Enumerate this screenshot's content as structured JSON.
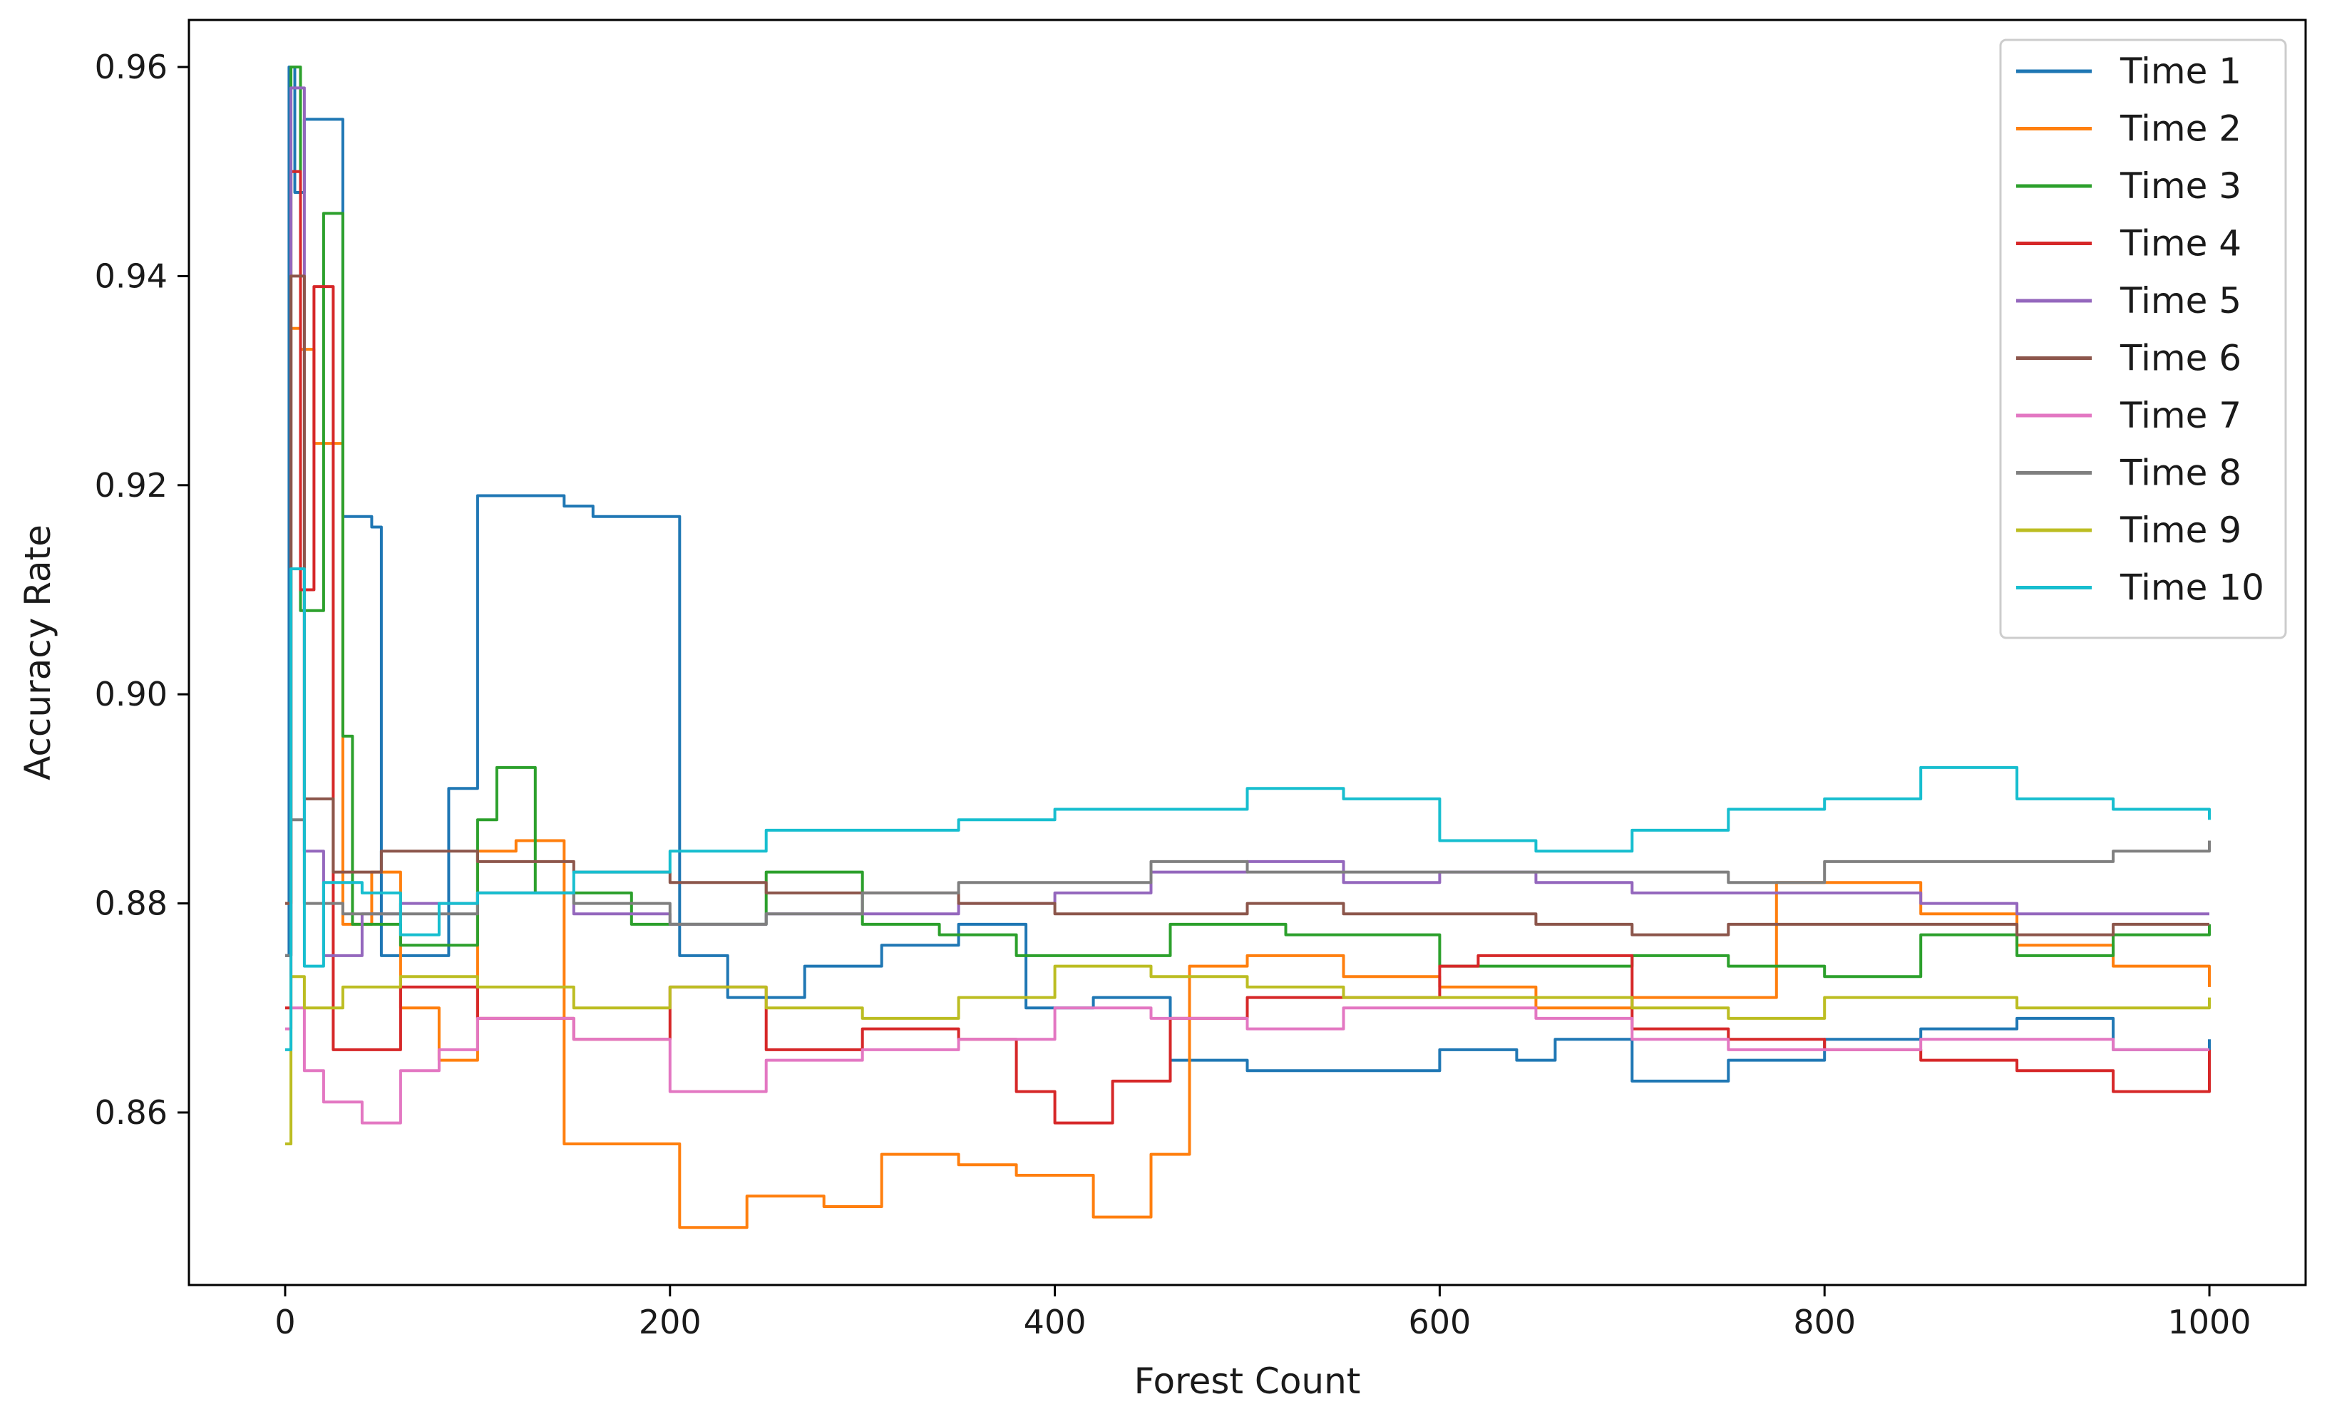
{
  "chart_data": {
    "type": "line",
    "title": "",
    "xlabel": "Forest Count",
    "ylabel": "Accuracy Rate",
    "xlim": [
      -50,
      1050
    ],
    "ylim": [
      0.8435,
      0.9645
    ],
    "x_ticks": [
      0,
      200,
      400,
      600,
      800,
      1000
    ],
    "x_tick_labels": [
      "0",
      "200",
      "400",
      "600",
      "800",
      "1000"
    ],
    "y_ticks": [
      0.86,
      0.88,
      0.9,
      0.92,
      0.94,
      0.96
    ],
    "y_tick_labels": [
      "0.86",
      "0.88",
      "0.90",
      "0.92",
      "0.94",
      "0.96"
    ],
    "grid": false,
    "legend_position": "upper-right",
    "series": [
      {
        "name": "Time 1",
        "color": "#1f77b4",
        "x": [
          0,
          2,
          5,
          10,
          25,
          30,
          45,
          50,
          85,
          100,
          120,
          145,
          160,
          195,
          205,
          230,
          270,
          310,
          350,
          385,
          420,
          460,
          500,
          550,
          600,
          640,
          660,
          700,
          750,
          800,
          850,
          900,
          950,
          1000
        ],
        "y": [
          0.875,
          0.96,
          0.948,
          0.955,
          0.955,
          0.917,
          0.916,
          0.875,
          0.891,
          0.919,
          0.919,
          0.918,
          0.917,
          0.917,
          0.875,
          0.871,
          0.874,
          0.876,
          0.878,
          0.87,
          0.871,
          0.865,
          0.864,
          0.864,
          0.866,
          0.865,
          0.867,
          0.863,
          0.865,
          0.867,
          0.868,
          0.869,
          0.866,
          0.867
        ]
      },
      {
        "name": "Time 2",
        "color": "#ff7f0e",
        "x": [
          0,
          3,
          8,
          15,
          22,
          30,
          45,
          60,
          80,
          100,
          120,
          145,
          180,
          205,
          240,
          280,
          310,
          350,
          380,
          420,
          450,
          470,
          500,
          550,
          600,
          650,
          700,
          750,
          775,
          800,
          850,
          900,
          950,
          1000
        ],
        "y": [
          0.88,
          0.935,
          0.933,
          0.924,
          0.924,
          0.878,
          0.883,
          0.87,
          0.865,
          0.885,
          0.886,
          0.857,
          0.857,
          0.849,
          0.852,
          0.851,
          0.856,
          0.855,
          0.854,
          0.85,
          0.856,
          0.874,
          0.875,
          0.873,
          0.872,
          0.87,
          0.871,
          0.871,
          0.882,
          0.882,
          0.879,
          0.876,
          0.874,
          0.872
        ]
      },
      {
        "name": "Time 3",
        "color": "#2ca02c",
        "x": [
          0,
          3,
          8,
          14,
          20,
          25,
          30,
          35,
          60,
          100,
          110,
          130,
          180,
          250,
          300,
          340,
          380,
          460,
          520,
          600,
          650,
          700,
          750,
          800,
          850,
          900,
          950,
          1000
        ],
        "y": [
          0.875,
          0.96,
          0.908,
          0.908,
          0.946,
          0.946,
          0.896,
          0.878,
          0.876,
          0.888,
          0.893,
          0.881,
          0.878,
          0.883,
          0.878,
          0.877,
          0.875,
          0.878,
          0.877,
          0.874,
          0.874,
          0.875,
          0.874,
          0.873,
          0.877,
          0.875,
          0.877,
          0.878
        ]
      },
      {
        "name": "Time 4",
        "color": "#d62728",
        "x": [
          0,
          3,
          8,
          15,
          25,
          40,
          60,
          100,
          150,
          200,
          250,
          300,
          350,
          380,
          400,
          430,
          460,
          500,
          550,
          600,
          620,
          650,
          700,
          750,
          800,
          850,
          900,
          950,
          1000
        ],
        "y": [
          0.87,
          0.95,
          0.91,
          0.939,
          0.866,
          0.866,
          0.872,
          0.869,
          0.867,
          0.872,
          0.866,
          0.868,
          0.867,
          0.862,
          0.859,
          0.863,
          0.869,
          0.871,
          0.871,
          0.874,
          0.875,
          0.875,
          0.868,
          0.867,
          0.866,
          0.865,
          0.864,
          0.862,
          0.866
        ]
      },
      {
        "name": "Time 5",
        "color": "#9467bd",
        "x": [
          0,
          3,
          10,
          20,
          40,
          60,
          100,
          150,
          200,
          250,
          300,
          350,
          400,
          450,
          500,
          550,
          600,
          650,
          700,
          750,
          800,
          850,
          900,
          950,
          1000
        ],
        "y": [
          0.875,
          0.958,
          0.885,
          0.875,
          0.879,
          0.88,
          0.881,
          0.879,
          0.878,
          0.879,
          0.879,
          0.88,
          0.881,
          0.883,
          0.884,
          0.882,
          0.883,
          0.882,
          0.881,
          0.881,
          0.881,
          0.88,
          0.879,
          0.879,
          0.879
        ]
      },
      {
        "name": "Time 6",
        "color": "#8c564b",
        "x": [
          0,
          3,
          10,
          25,
          50,
          100,
          150,
          200,
          250,
          300,
          350,
          400,
          450,
          500,
          550,
          600,
          650,
          700,
          750,
          800,
          850,
          900,
          950,
          1000
        ],
        "y": [
          0.88,
          0.94,
          0.89,
          0.883,
          0.885,
          0.884,
          0.883,
          0.882,
          0.881,
          0.881,
          0.88,
          0.879,
          0.879,
          0.88,
          0.879,
          0.879,
          0.878,
          0.877,
          0.878,
          0.878,
          0.878,
          0.877,
          0.878,
          0.878
        ]
      },
      {
        "name": "Time 7",
        "color": "#e377c2",
        "x": [
          0,
          3,
          10,
          20,
          40,
          60,
          80,
          100,
          150,
          200,
          250,
          300,
          350,
          400,
          450,
          500,
          550,
          600,
          650,
          700,
          750,
          800,
          850,
          900,
          950,
          1000
        ],
        "y": [
          0.868,
          0.87,
          0.864,
          0.861,
          0.859,
          0.864,
          0.866,
          0.869,
          0.867,
          0.862,
          0.865,
          0.866,
          0.867,
          0.87,
          0.869,
          0.868,
          0.87,
          0.87,
          0.869,
          0.867,
          0.866,
          0.866,
          0.867,
          0.867,
          0.866,
          0.866
        ]
      },
      {
        "name": "Time 8",
        "color": "#7f7f7f",
        "x": [
          0,
          3,
          10,
          30,
          50,
          100,
          150,
          200,
          250,
          300,
          350,
          400,
          450,
          500,
          550,
          600,
          650,
          700,
          750,
          800,
          850,
          900,
          950,
          1000
        ],
        "y": [
          0.875,
          0.888,
          0.88,
          0.879,
          0.879,
          0.881,
          0.88,
          0.878,
          0.879,
          0.881,
          0.882,
          0.882,
          0.884,
          0.883,
          0.883,
          0.883,
          0.883,
          0.883,
          0.882,
          0.884,
          0.884,
          0.884,
          0.885,
          0.886
        ]
      },
      {
        "name": "Time 9",
        "color": "#bcbd22",
        "x": [
          0,
          3,
          10,
          30,
          60,
          100,
          150,
          200,
          250,
          300,
          350,
          400,
          450,
          500,
          550,
          600,
          650,
          700,
          750,
          800,
          850,
          900,
          950,
          1000
        ],
        "y": [
          0.857,
          0.873,
          0.87,
          0.872,
          0.873,
          0.872,
          0.87,
          0.872,
          0.87,
          0.869,
          0.871,
          0.874,
          0.873,
          0.872,
          0.871,
          0.871,
          0.871,
          0.87,
          0.869,
          0.871,
          0.871,
          0.87,
          0.87,
          0.871
        ]
      },
      {
        "name": "Time 10",
        "color": "#17becf",
        "x": [
          0,
          3,
          10,
          20,
          40,
          60,
          80,
          100,
          150,
          200,
          250,
          300,
          350,
          400,
          450,
          500,
          550,
          600,
          650,
          700,
          750,
          800,
          850,
          900,
          950,
          1000
        ],
        "y": [
          0.866,
          0.912,
          0.874,
          0.882,
          0.881,
          0.877,
          0.88,
          0.881,
          0.883,
          0.885,
          0.887,
          0.887,
          0.888,
          0.889,
          0.889,
          0.891,
          0.89,
          0.886,
          0.885,
          0.887,
          0.889,
          0.89,
          0.893,
          0.89,
          0.889,
          0.888
        ]
      }
    ]
  }
}
